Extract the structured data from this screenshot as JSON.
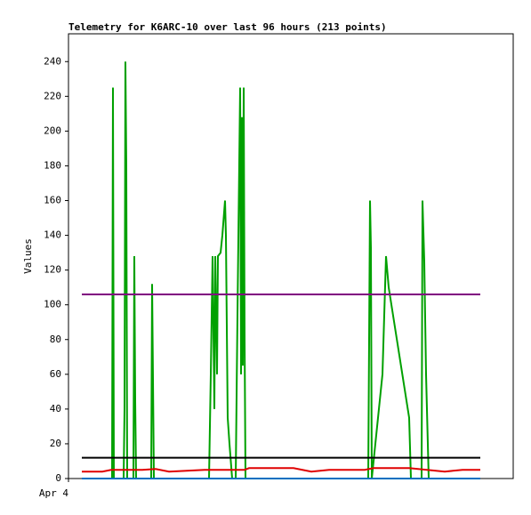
{
  "chart_data": {
    "type": "line",
    "title": "Telemetry for K6ARC-10 over last 96 hours (213 points)",
    "y_label": "Values",
    "xlim": [
      0,
      100
    ],
    "xticks": [
      {
        "value": 0,
        "label": "Apr 4"
      }
    ],
    "ylim": [
      0,
      256
    ],
    "yticks": [
      0,
      20,
      40,
      60,
      80,
      100,
      120,
      140,
      160,
      180,
      200,
      220,
      240
    ],
    "series": [
      {
        "color": "#00a000",
        "x": [
          3,
          9.8,
          10,
          10.2,
          12.4,
          12.6,
          12.8,
          13,
          13.2,
          14.6,
          14.8,
          15,
          15.2,
          18.6,
          18.8,
          19,
          19.2,
          31.6,
          32,
          32.4,
          32.8,
          33,
          33.4,
          33.6,
          34.2,
          34.6,
          35.2,
          35.4,
          35.8,
          36.2,
          36.8,
          37.6,
          38,
          38.6,
          38.8,
          39,
          39.2,
          39.4,
          39.6,
          39.8,
          67.4,
          67.6,
          67.8,
          68,
          68.2,
          70.6,
          71.4,
          72,
          76.6,
          77,
          79.4,
          79.6,
          80,
          80.4,
          81,
          92.6
        ],
        "values": [
          0,
          0,
          225,
          0,
          0,
          40,
          240,
          180,
          0,
          0,
          128,
          45,
          0,
          0,
          112,
          57,
          0,
          0,
          60,
          128,
          40,
          128,
          60,
          128,
          130,
          140,
          160,
          140,
          35,
          20,
          0,
          0,
          95,
          225,
          60,
          208,
          65,
          225,
          80,
          0,
          0,
          80,
          160,
          133,
          0,
          60,
          128,
          110,
          35,
          0,
          0,
          160,
          125,
          60,
          0,
          0
        ]
      },
      {
        "color": "#e00000",
        "x": [
          3,
          7.6,
          9.6,
          14.6,
          16.6,
          19.6,
          22.6,
          30.6,
          39.6,
          40.6,
          50.6,
          52.6,
          54.6,
          58.6,
          66.6,
          68.6,
          76.6,
          80.6,
          84.6,
          88.6,
          92.6
        ],
        "values": [
          4,
          4,
          5,
          5,
          5,
          5.5,
          4,
          5,
          5,
          6,
          6,
          5,
          4,
          5,
          5,
          6,
          6,
          5,
          4,
          5,
          5
        ]
      },
      {
        "color": "#000000",
        "x": [
          3,
          92.6
        ],
        "values": [
          12,
          12
        ]
      },
      {
        "color": "#800080",
        "x": [
          3,
          92.6
        ],
        "values": [
          106,
          106
        ]
      },
      {
        "color": "#0070c0",
        "x": [
          3,
          92.6
        ],
        "values": [
          0,
          0
        ]
      }
    ]
  }
}
